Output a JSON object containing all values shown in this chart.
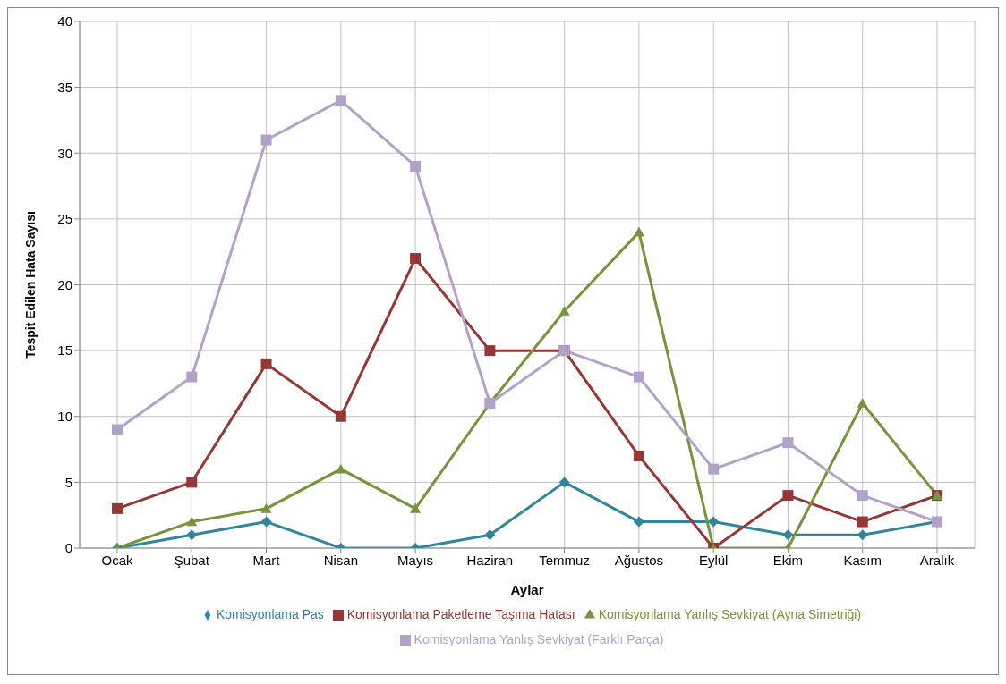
{
  "chart_data": {
    "type": "line",
    "xlabel": "Aylar",
    "ylabel": "Tespit Edilen Hata Sayısı",
    "categories": [
      "Ocak",
      "Şubat",
      "Mart",
      "Nisan",
      "Mayıs",
      "Haziran",
      "Temmuz",
      "Ağustos",
      "Eylül",
      "Ekim",
      "Kasım",
      "Aralık"
    ],
    "series": [
      {
        "name": "Komisyonlama Pas",
        "color": "#31859c",
        "marker": "diamond",
        "values": [
          0,
          1,
          2,
          0,
          0,
          1,
          5,
          2,
          2,
          1,
          1,
          2
        ]
      },
      {
        "name": "Komisyonlama Paketleme Taşıma Hatası",
        "color": "#953735",
        "marker": "square",
        "values": [
          3,
          5,
          14,
          10,
          22,
          15,
          15,
          7,
          0,
          4,
          2,
          4
        ]
      },
      {
        "name": "Komisyonlama Yanlış Sevkiyat (Ayna Simetriği)",
        "color": "#77933c",
        "marker": "triangle",
        "values": [
          0,
          2,
          3,
          6,
          3,
          11,
          18,
          24,
          0,
          0,
          11,
          4
        ]
      },
      {
        "name": "Komisyonlama Yanlış Sevkiyat (Farklı Parça)",
        "color": "#b3a2c7",
        "marker": "square",
        "values": [
          9,
          13,
          31,
          34,
          29,
          11,
          15,
          13,
          6,
          8,
          4,
          2
        ]
      }
    ],
    "ylim": [
      0,
      40
    ],
    "yticks": [
      0,
      5,
      10,
      15,
      20,
      25,
      30,
      35,
      40
    ],
    "grid": true,
    "legend": "bottom"
  }
}
